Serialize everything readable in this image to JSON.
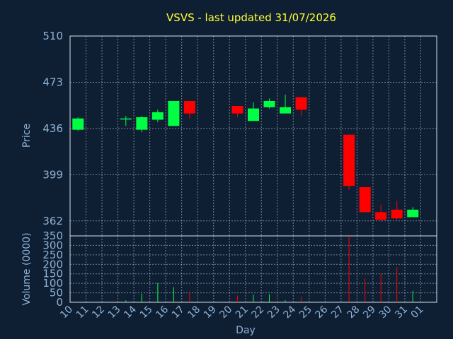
{
  "chart_data": {
    "type": "candlestick",
    "title": "VSVS - last updated 31/07/2026",
    "xlabel": "Day",
    "price": {
      "ylabel": "Price",
      "ylim": [
        350,
        510
      ],
      "yticks": [
        "510",
        "473",
        "436",
        "399",
        "362",
        "350"
      ]
    },
    "volume": {
      "ylabel": "Volume (0000)",
      "ylim": [
        0,
        350
      ],
      "yticks": [
        "0",
        "50",
        "100",
        "150",
        "200",
        "250",
        "300",
        "350"
      ]
    },
    "x_ticks": [
      "10",
      "11",
      "12",
      "13",
      "14",
      "15",
      "16",
      "17",
      "18",
      "19",
      "20",
      "21",
      "22",
      "23",
      "24",
      "25",
      "26",
      "27",
      "28",
      "29",
      "30",
      "31",
      "01"
    ],
    "candles": [
      {
        "day": "10",
        "open": 435,
        "high": 445,
        "low": 434,
        "close": 444
      },
      {
        "day": "13",
        "open": 444,
        "high": 446,
        "low": 438,
        "close": 444
      },
      {
        "day": "14",
        "open": 435,
        "high": 446,
        "low": 433,
        "close": 445
      },
      {
        "day": "15",
        "open": 443,
        "high": 451,
        "low": 441,
        "close": 449
      },
      {
        "day": "16",
        "open": 438,
        "high": 458,
        "low": 438,
        "close": 458
      },
      {
        "day": "17",
        "open": 458,
        "high": 458,
        "low": 444,
        "close": 448
      },
      {
        "day": "20",
        "open": 454,
        "high": 454,
        "low": 445,
        "close": 448
      },
      {
        "day": "21",
        "open": 442,
        "high": 457,
        "low": 442,
        "close": 452
      },
      {
        "day": "22",
        "open": 453,
        "high": 460,
        "low": 452,
        "close": 458
      },
      {
        "day": "23",
        "open": 448,
        "high": 463,
        "low": 448,
        "close": 453
      },
      {
        "day": "24",
        "open": 461,
        "high": 461,
        "low": 446,
        "close": 451
      },
      {
        "day": "27",
        "open": 431,
        "high": 431,
        "low": 387,
        "close": 390
      },
      {
        "day": "28",
        "open": 389,
        "high": 389,
        "low": 369,
        "close": 369
      },
      {
        "day": "29",
        "open": 369,
        "high": 375,
        "low": 362,
        "close": 363
      },
      {
        "day": "30",
        "open": 371,
        "high": 378,
        "low": 363,
        "close": 364
      },
      {
        "day": "31",
        "open": 365,
        "high": 373,
        "low": 365,
        "close": 371
      }
    ],
    "volumes": [
      {
        "day": "10",
        "value": 0
      },
      {
        "day": "13",
        "value": 10
      },
      {
        "day": "14",
        "value": 45
      },
      {
        "day": "15",
        "value": 102
      },
      {
        "day": "16",
        "value": 80
      },
      {
        "day": "17",
        "value": 55
      },
      {
        "day": "20",
        "value": 35
      },
      {
        "day": "21",
        "value": 40
      },
      {
        "day": "22",
        "value": 42
      },
      {
        "day": "23",
        "value": 10
      },
      {
        "day": "24",
        "value": 30
      },
      {
        "day": "27",
        "value": 345
      },
      {
        "day": "28",
        "value": 125
      },
      {
        "day": "29",
        "value": 150
      },
      {
        "day": "30",
        "value": 185
      },
      {
        "day": "31",
        "value": 60
      }
    ],
    "colors": {
      "background": "#0f1f33",
      "up": "#00ff44",
      "down": "#ff0000",
      "title": "#ffff33",
      "axis_text": "#8fb3d6"
    }
  }
}
